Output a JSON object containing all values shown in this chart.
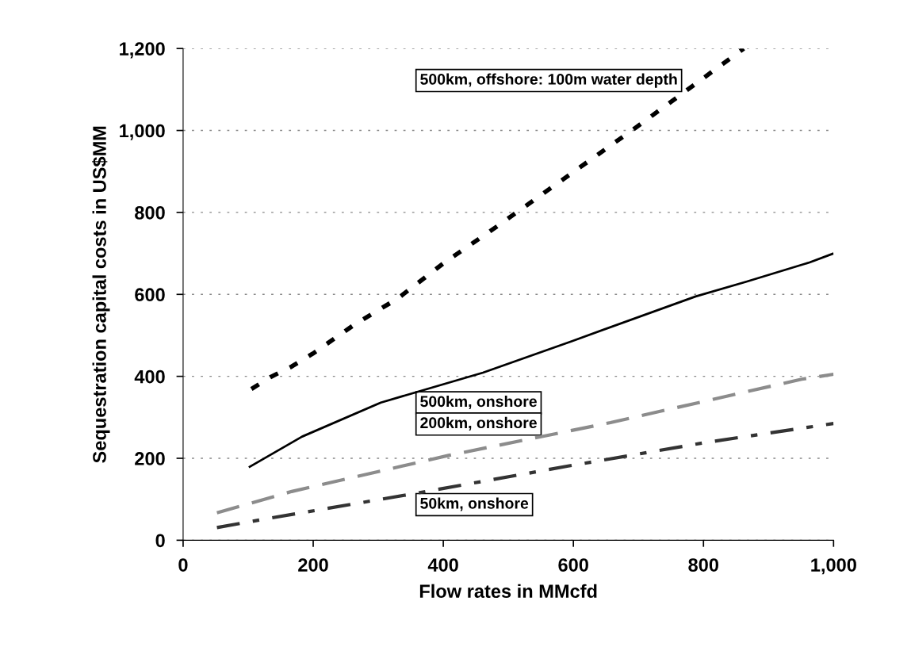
{
  "chart_data": {
    "type": "line",
    "xlabel": "Flow rates in MMcfd",
    "ylabel": "Sequestration capital costs in US$MM",
    "xlim": [
      0,
      1000
    ],
    "ylim": [
      0,
      1200
    ],
    "xticks": [
      {
        "value": 0,
        "label": "0"
      },
      {
        "value": 200,
        "label": "200"
      },
      {
        "value": 400,
        "label": "400"
      },
      {
        "value": 600,
        "label": "600"
      },
      {
        "value": 800,
        "label": "800"
      },
      {
        "value": 1000,
        "label": "1,000"
      }
    ],
    "yticks": [
      {
        "value": 0,
        "label": "0"
      },
      {
        "value": 200,
        "label": "200"
      },
      {
        "value": 400,
        "label": "400"
      },
      {
        "value": 600,
        "label": "600"
      },
      {
        "value": 800,
        "label": "800"
      },
      {
        "value": 1000,
        "label": "1,000"
      },
      {
        "value": 1200,
        "label": "1,200"
      }
    ],
    "grid": "y",
    "series": [
      {
        "name": "500km, offshore: 100m water depth",
        "color": "#000000",
        "line_style": "dotted",
        "x": [
          105,
          134,
          167,
          199,
          265,
          330,
          402,
          480,
          695,
          862
        ],
        "values": [
          369,
          398,
          424,
          455,
          528,
          590,
          678,
          763,
          1006,
          1200
        ]
      },
      {
        "name": "500km, onshore",
        "color": "#000000",
        "line_style": "solid",
        "x": [
          101,
          183,
          304,
          461,
          598,
          788,
          866,
          963,
          1000
        ],
        "values": [
          178,
          253,
          336,
          409,
          486,
          595,
          631,
          678,
          700
        ]
      },
      {
        "name": "200km, onshore",
        "color": "#8c8c8c",
        "line_style": "dashed",
        "x": [
          52,
          167,
          408,
          657,
          951,
          1000
        ],
        "values": [
          67,
          119,
          207,
          287,
          393,
          405
        ]
      },
      {
        "name": "50km, onshore",
        "color": "#333333",
        "line_style": "dashdot",
        "x": [
          52,
          134,
          356,
          592,
          801,
          1000
        ],
        "values": [
          31,
          54,
          114,
          181,
          238,
          285
        ]
      }
    ]
  }
}
